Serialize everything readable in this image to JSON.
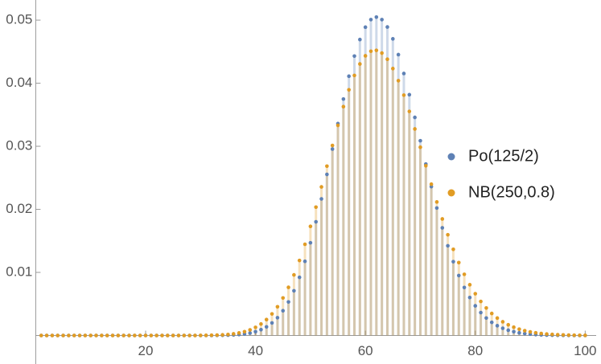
{
  "chart_data": {
    "type": "discrete",
    "x": [
      1,
      2,
      3,
      4,
      5,
      6,
      7,
      8,
      9,
      10,
      11,
      12,
      13,
      14,
      15,
      16,
      17,
      18,
      19,
      20,
      21,
      22,
      23,
      24,
      25,
      26,
      27,
      28,
      29,
      30,
      31,
      32,
      33,
      34,
      35,
      36,
      37,
      38,
      39,
      40,
      41,
      42,
      43,
      44,
      45,
      46,
      47,
      48,
      49,
      50,
      51,
      52,
      53,
      54,
      55,
      56,
      57,
      58,
      59,
      60,
      61,
      62,
      63,
      64,
      65,
      66,
      67,
      68,
      69,
      70,
      71,
      72,
      73,
      74,
      75,
      76,
      77,
      78,
      79,
      80,
      81,
      82,
      83,
      84,
      85,
      86,
      87,
      88,
      89,
      90,
      91,
      92,
      93,
      94,
      95,
      96,
      97,
      98,
      99,
      100
    ],
    "series": [
      {
        "name": "Po(125/2)",
        "color": "#5e81b5",
        "values": [
          0,
          0,
          0,
          0,
          0,
          0,
          0,
          0,
          0,
          0,
          0,
          0,
          0,
          0,
          0,
          0,
          0,
          0,
          0,
          0,
          0,
          0,
          0,
          0,
          0,
          0,
          0,
          0,
          0,
          0,
          0,
          0,
          2e-05,
          3e-05,
          5e-05,
          9e-05,
          0.00015,
          0.00024,
          0.00039,
          0.0006,
          0.00092,
          0.00137,
          0.00199,
          0.00282,
          0.00392,
          0.00532,
          0.00708,
          0.00922,
          0.01176,
          0.0147,
          0.01802,
          0.02166,
          0.02554,
          0.02956,
          0.03359,
          0.03749,
          0.04111,
          0.0443,
          0.04692,
          0.04888,
          0.05008,
          0.05048,
          0.05008,
          0.04891,
          0.04703,
          0.04453,
          0.04154,
          0.03818,
          0.03458,
          0.03088,
          0.02718,
          0.0236,
          0.02021,
          0.01707,
          0.01422,
          0.0117,
          0.0095,
          0.00761,
          0.00602,
          0.0047,
          0.00363,
          0.00277,
          0.00208,
          0.00155,
          0.00114,
          0.00083,
          0.0006,
          0.00042,
          0.0003,
          0.00021,
          0.00014,
          0.0001,
          6e-05,
          4e-05,
          3e-05,
          2e-05,
          1e-05,
          0,
          0,
          0
        ]
      },
      {
        "name": "NB(250,0.8)",
        "color": "#e19c24",
        "values": [
          0,
          0,
          0,
          0,
          0,
          0,
          0,
          0,
          0,
          0,
          0,
          0,
          0,
          0,
          0,
          0,
          0,
          0,
          0,
          0,
          0,
          0,
          0,
          0,
          0,
          0,
          0,
          0,
          0,
          1e-05,
          2e-05,
          4e-05,
          6e-05,
          0.0001,
          0.00016,
          0.00026,
          0.0004,
          0.0006,
          0.00089,
          0.00129,
          0.00182,
          0.00252,
          0.00342,
          0.00455,
          0.00595,
          0.00763,
          0.00961,
          0.01189,
          0.01446,
          0.0173,
          0.02035,
          0.02356,
          0.02685,
          0.03013,
          0.03331,
          0.03628,
          0.03895,
          0.04123,
          0.04305,
          0.04434,
          0.04507,
          0.04521,
          0.04478,
          0.0438,
          0.04232,
          0.0404,
          0.03811,
          0.03553,
          0.03275,
          0.02985,
          0.02691,
          0.02399,
          0.02117,
          0.01848,
          0.01597,
          0.01366,
          0.01156,
          0.0097,
          0.00805,
          0.00662,
          0.0054,
          0.00436,
          0.00349,
          0.00276,
          0.00217,
          0.00169,
          0.00131,
          0.001,
          0.00076,
          0.00057,
          0.00043,
          0.00032,
          0.00023,
          0.00017,
          0.00012,
          9e-05,
          6e-05,
          4e-05,
          3e-05,
          2e-05
        ]
      }
    ],
    "xlim": [
      0,
      102
    ],
    "xticks": [
      20,
      40,
      60,
      80,
      100
    ],
    "ylim": [
      0,
      0.053
    ],
    "yticks": [
      0.01,
      0.02,
      0.03,
      0.04,
      0.05
    ]
  }
}
